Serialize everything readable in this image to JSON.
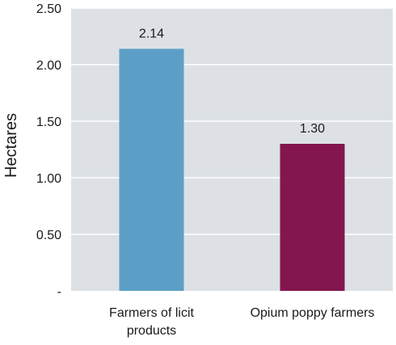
{
  "chart_data": {
    "type": "bar",
    "title": "",
    "xlabel": "",
    "ylabel": "Hectares",
    "categories": [
      "Farmers of licit products",
      "Opium poppy farmers"
    ],
    "category_lines": [
      [
        "Farmers of licit",
        "products"
      ],
      [
        "Opium poppy farmers"
      ]
    ],
    "values": [
      2.14,
      1.3
    ],
    "value_labels": [
      "2.14",
      "1.30"
    ],
    "bar_colors": [
      "#5c9fc6",
      "#83164d"
    ],
    "ylim": [
      0,
      2.5
    ],
    "yticks": [
      0,
      0.5,
      1.0,
      1.5,
      2.0,
      2.5
    ],
    "ytick_labels": [
      "-",
      "0.50",
      "1.00",
      "1.50",
      "2.00",
      "2.50"
    ],
    "grid": true,
    "plot_background": "#dde1e6",
    "legend": "none"
  }
}
